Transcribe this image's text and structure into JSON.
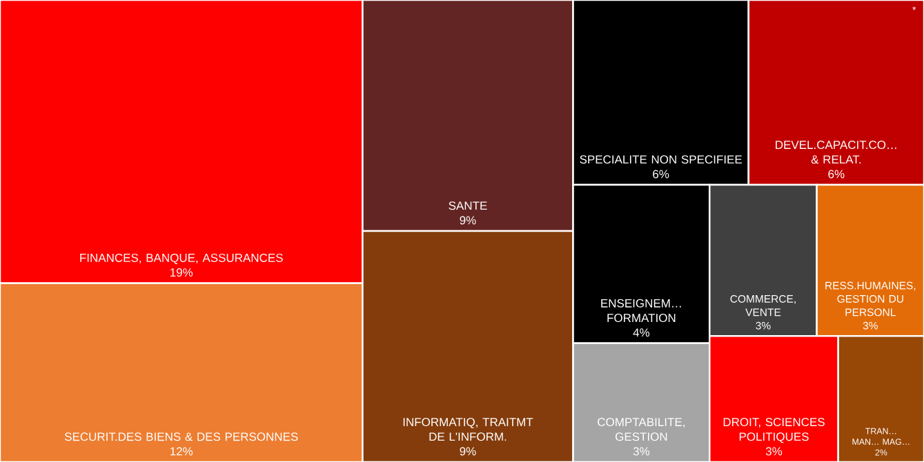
{
  "chart_data": {
    "type": "other",
    "categories": [
      "FINANCES, BANQUE, ASSURANCES",
      "SECURIT.DES BIENS & DES PERSONNES",
      "SANTE",
      "INFORMATIQ, TRAITMT DE L'INFORM.",
      "SPECIALITE NON SPECIFIEE",
      "DEVEL.CAPACIT.CO… & RELAT.",
      "ENSEIGNEM… FORMATION",
      "COMPTABILITE, GESTION",
      "COMMERCE, VENTE",
      "RESS.HUMAINES, GESTION DU PERSONL",
      "DROIT, SCIENCES POLITIQUES",
      "TRAN… MAN… MAG…"
    ],
    "values": [
      19,
      12,
      9,
      9,
      6,
      6,
      4,
      3,
      3,
      3,
      3,
      2
    ],
    "value_labels": [
      "19%",
      "12%",
      "9%",
      "9%",
      "6%",
      "6%",
      "4%",
      "3%",
      "3%",
      "3%",
      "3%",
      "2%"
    ],
    "colors": [
      "#ff0000",
      "#ed7d31",
      "#632523",
      "#843c0c",
      "#000000",
      "#c00000",
      "#000000",
      "#a5a5a5",
      "#404040",
      "#e36c09",
      "#ff0000",
      "#974706"
    ],
    "annotations": [
      "*"
    ]
  }
}
